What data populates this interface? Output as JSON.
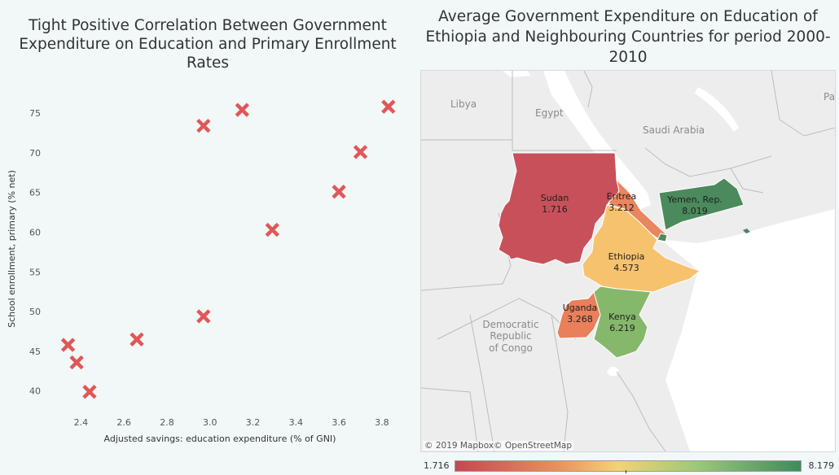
{
  "chart_data": [
    {
      "type": "scatter",
      "title": "Tight Positive Correlation Between Government Expenditure on Education and Primary Enrollment Rates",
      "xlabel": "Adjusted savings: education expenditure (% of GNI)",
      "ylabel": "School enrollment, primary (% net)",
      "x_ticks": [
        "2.4",
        "2.6",
        "2.8",
        "3.0",
        "3.2",
        "3.4",
        "3.6",
        "3.8"
      ],
      "y_ticks": [
        "40",
        "45",
        "50",
        "55",
        "60",
        "65",
        "70",
        "75"
      ],
      "xlim": [
        2.3,
        3.88
      ],
      "ylim": [
        37,
        79
      ],
      "marker": "x",
      "marker_color": "#e15759",
      "points": [
        {
          "x": 2.34,
          "y": 45.8
        },
        {
          "x": 2.38,
          "y": 43.6
        },
        {
          "x": 2.44,
          "y": 39.9
        },
        {
          "x": 2.66,
          "y": 46.5
        },
        {
          "x": 2.97,
          "y": 49.4
        },
        {
          "x": 2.97,
          "y": 73.4
        },
        {
          "x": 3.15,
          "y": 75.4
        },
        {
          "x": 3.29,
          "y": 60.3
        },
        {
          "x": 3.6,
          "y": 65.1
        },
        {
          "x": 3.7,
          "y": 70.1
        },
        {
          "x": 3.83,
          "y": 75.8
        }
      ]
    },
    {
      "type": "choropleth-map",
      "title": "Average Government Expenditure on Education of Ethiopia and Neighbouring Countries for period 2000-2010",
      "legend": {
        "min": "1.716",
        "max": "8.179",
        "colors": [
          "#c7464f",
          "#e8925f",
          "#f5d276",
          "#9cc87a",
          "#3e8b5b"
        ]
      },
      "countries": [
        {
          "name": "Sudan",
          "value": "1.716",
          "color": "#c8505a"
        },
        {
          "name": "Eritrea",
          "value": "3.212",
          "color": "#e8865f"
        },
        {
          "name": "Yemen, Rep.",
          "value": "8.019",
          "color": "#4a8a5c"
        },
        {
          "name": "Ethiopia",
          "value": "4.573",
          "color": "#f7c26e"
        },
        {
          "name": "Uganda",
          "value": "3.268",
          "color": "#e8805c"
        },
        {
          "name": "Kenya",
          "value": "6.219",
          "color": "#86b86c"
        }
      ],
      "reference_labels": [
        "Libya",
        "Egypt",
        "Saudi Arabia",
        "Democratic",
        "Republic",
        "of Congo",
        "Pa"
      ],
      "attribution": "© 2019 Mapbox© OpenStreetMap"
    }
  ]
}
